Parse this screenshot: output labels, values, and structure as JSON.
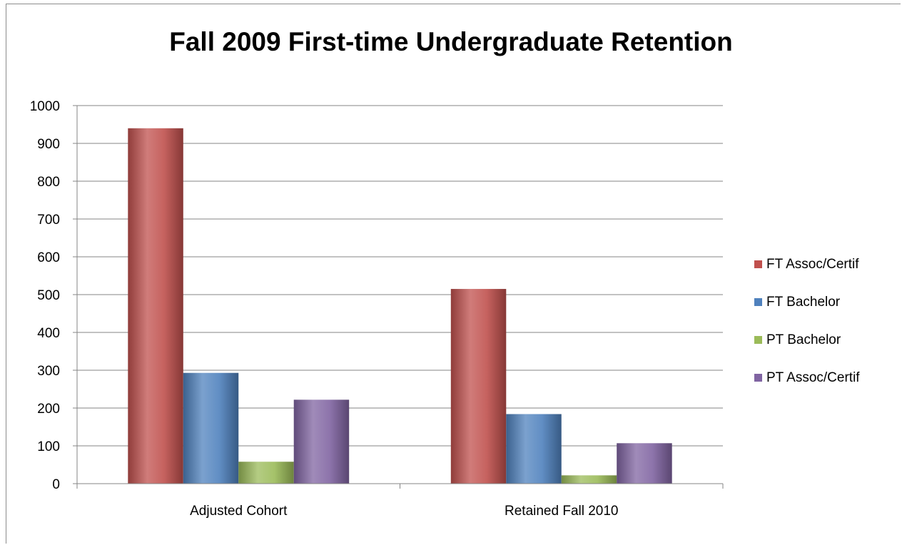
{
  "chart_data": {
    "type": "bar",
    "title": "Fall 2009 First-time Undergraduate Retention",
    "categories": [
      "Adjusted Cohort",
      "Retained Fall 2010"
    ],
    "series": [
      {
        "name": "FT Assoc/Certif",
        "values": [
          940,
          515
        ],
        "color": "#c0504d"
      },
      {
        "name": "FT Bachelor",
        "values": [
          293,
          184
        ],
        "color": "#4f81bd"
      },
      {
        "name": "PT Bachelor",
        "values": [
          58,
          22
        ],
        "color": "#9bbb59"
      },
      {
        "name": "PT Assoc/Certif",
        "values": [
          222,
          107
        ],
        "color": "#8064a2"
      }
    ],
    "ylim": [
      0,
      1000
    ],
    "yticks": [
      "0",
      "100",
      "200",
      "300",
      "400",
      "500",
      "600",
      "700",
      "800",
      "900",
      "1000"
    ],
    "grid": true,
    "legend_position": "right"
  }
}
